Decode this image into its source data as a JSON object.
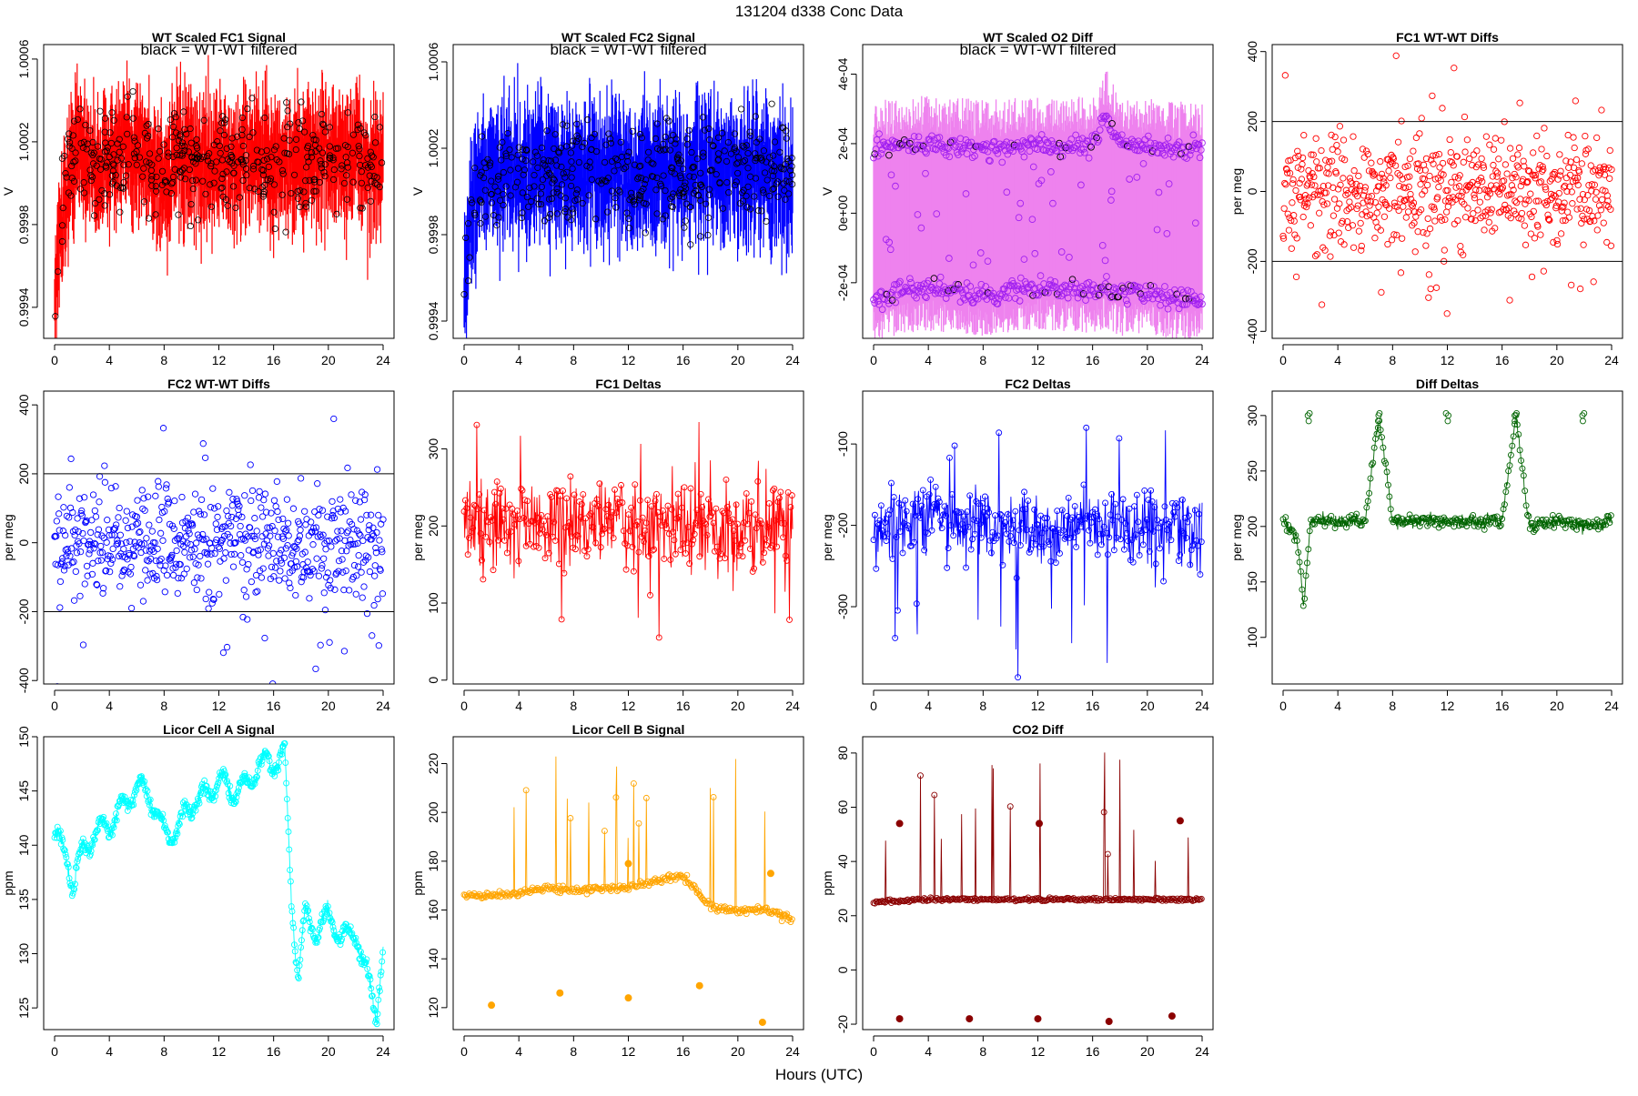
{
  "header": {
    "main_title": "131204   d338   Conc Data",
    "x_axis_label": "Hours (UTC)"
  },
  "x_ticks": [
    "0",
    "4",
    "8",
    "12",
    "16",
    "20",
    "24"
  ],
  "chart_data": [
    {
      "id": "fc1_signal",
      "type": "line",
      "title": "WT Scaled FC1 Signal",
      "annotation": "black = WT-WT filtered",
      "ylabel": "V",
      "ylim": [
        0.99925,
        1.00067
      ],
      "yticks": [
        0.9994,
        0.9998,
        1.0002,
        1.0006
      ],
      "ytick_labels": [
        "0.9994",
        "0.9998",
        "1.0002",
        "1.0006"
      ],
      "color": "#ff0000",
      "spread": 0.00028,
      "markers": "black-circles",
      "series": [
        {
          "name": "FC1 signal",
          "x": [
            0,
            0.5,
            1,
            1.5,
            2,
            3,
            4,
            5,
            6,
            7,
            8,
            9,
            10,
            11,
            12,
            13,
            14,
            15,
            16,
            17,
            18,
            19,
            20,
            21,
            22,
            23,
            24
          ],
          "values": [
            0.99945,
            0.99985,
            1.0,
            1.00015,
            1.00018,
            1.00005,
            1.00015,
            1.00012,
            1.00018,
            1.0001,
            1.0,
            1.00012,
            1.00008,
            1.0001,
            1.00012,
            1.00005,
            1.00015,
            1.0001,
            1.00008,
            1.0001,
            1.00012,
            1.00012,
            1.00015,
            1.0001,
            1.00015,
            1.00005,
            1.00008
          ]
        }
      ]
    },
    {
      "id": "fc2_signal",
      "type": "line",
      "title": "WT Scaled FC2 Signal",
      "annotation": "black = WT-WT filtered",
      "ylabel": "V",
      "ylim": [
        0.99932,
        1.00068
      ],
      "yticks": [
        0.9994,
        0.9998,
        1.0002,
        1.0006
      ],
      "ytick_labels": [
        "0.9994",
        "0.9998",
        "1.0002",
        "1.0006"
      ],
      "color": "#0000ff",
      "spread": 0.00028,
      "markers": "black-circles",
      "series": [
        {
          "name": "FC2 signal",
          "x": [
            0,
            0.5,
            1,
            1.5,
            2,
            3,
            4,
            5,
            6,
            7,
            8,
            9,
            10,
            11,
            12,
            13,
            14,
            15,
            16,
            17,
            18,
            19,
            20,
            21,
            22,
            23,
            24
          ],
          "values": [
            0.99955,
            0.9999,
            1.00005,
            1.00008,
            1.0001,
            1.00008,
            1.0001,
            1.0001,
            1.00012,
            1.0001,
            1.00005,
            1.0001,
            1.00008,
            1.0001,
            1.0001,
            1.00005,
            1.0001,
            1.0001,
            1.00005,
            1.0001,
            1.0001,
            1.00008,
            1.0001,
            1.0001,
            1.00012,
            1.00005,
            1.00008
          ]
        }
      ]
    },
    {
      "id": "o2_diff",
      "type": "line",
      "title": "WT Scaled O2 Diff",
      "annotation": "black = WT-WT filtered",
      "ylabel": "V",
      "ylim": [
        -0.00036,
        0.000485
      ],
      "yticks": [
        -0.0002,
        0,
        0.0002,
        0.0004
      ],
      "ytick_labels": [
        "-2e-04",
        "0e+00",
        "2e-04",
        "4e-04"
      ],
      "color": "#ee82ee",
      "marker_color": "#a020f0",
      "spread": 0,
      "markers": "purple-bands",
      "series": [
        {
          "name": "upper band",
          "x": [
            0,
            2,
            4,
            6,
            8,
            10,
            12,
            14,
            16,
            17,
            18,
            20,
            22,
            24
          ],
          "values": [
            0.000185,
            0.00019,
            0.0002,
            0.000195,
            0.000185,
            0.00019,
            0.0002,
            0.00019,
            0.0002,
            0.00028,
            0.0002,
            0.00019,
            0.00018,
            0.00019
          ]
        },
        {
          "name": "lower band",
          "x": [
            0,
            2,
            4,
            6,
            8,
            10,
            12,
            14,
            16,
            17,
            18,
            20,
            22,
            24
          ],
          "values": [
            -0.000245,
            -0.00023,
            -0.00022,
            -0.000225,
            -0.00024,
            -0.000225,
            -0.000215,
            -0.00022,
            -0.000225,
            -0.00021,
            -0.000235,
            -0.000225,
            -0.000245,
            -0.00025
          ]
        }
      ]
    },
    {
      "id": "fc1_wtwt",
      "type": "scatter",
      "title": "FC1 WT-WT Diffs",
      "ylabel": "per meg",
      "ylim": [
        -420,
        420
      ],
      "yticks": [
        -400,
        -200,
        0,
        200,
        400
      ],
      "ytick_labels": [
        "-400",
        "-200",
        "0",
        "200",
        "400"
      ],
      "color": "#ff0000",
      "hlines": [
        200,
        -200
      ],
      "spread": 75
    },
    {
      "id": "fc2_wtwt",
      "type": "scatter",
      "title": "FC2 WT-WT Diffs",
      "ylabel": "per meg",
      "ylim": [
        -410,
        440
      ],
      "yticks": [
        -400,
        -200,
        0,
        200,
        400
      ],
      "ytick_labels": [
        "-400",
        "-200",
        "0",
        "200",
        "400"
      ],
      "color": "#0000ff",
      "hlines": [
        200,
        -200
      ],
      "spread": 80
    },
    {
      "id": "fc1_deltas",
      "type": "line",
      "title": "FC1 Deltas",
      "ylabel": "per meg",
      "ylim": [
        -5,
        375
      ],
      "yticks": [
        0,
        100,
        200,
        300
      ],
      "ytick_labels": [
        "0",
        "100",
        "200",
        "300"
      ],
      "color": "#ff0000",
      "spread": 55,
      "series": [
        {
          "name": "FC1 delta",
          "x": [
            0,
            4,
            8,
            12,
            16,
            20,
            24
          ],
          "values": [
            200,
            205,
            200,
            205,
            200,
            200,
            205
          ]
        }
      ]
    },
    {
      "id": "fc2_deltas",
      "type": "line",
      "title": "FC2 Deltas",
      "ylabel": "per meg",
      "ylim": [
        -395,
        -35
      ],
      "yticks": [
        -300,
        -200,
        -100
      ],
      "ytick_labels": [
        "-300",
        "-200",
        "-100"
      ],
      "color": "#0000ff",
      "spread": 45,
      "series": [
        {
          "name": "FC2 delta",
          "x": [
            0,
            4,
            8,
            12,
            16,
            20,
            24
          ],
          "values": [
            -205,
            -195,
            -200,
            -205,
            -200,
            -200,
            -205
          ]
        }
      ]
    },
    {
      "id": "diff_deltas",
      "type": "line",
      "title": "Diff Deltas",
      "ylabel": "per meg",
      "ylim": [
        58,
        322
      ],
      "yticks": [
        100,
        150,
        200,
        250,
        300
      ],
      "ytick_labels": [
        "100",
        "150",
        "200",
        "250",
        "300"
      ],
      "color": "#006400",
      "spread": 6,
      "series": [
        {
          "name": "Diff delta",
          "x": [
            0,
            1,
            1.5,
            2,
            4,
            6,
            7,
            8,
            10,
            12,
            14,
            16,
            17,
            18,
            20,
            22,
            24
          ],
          "values": [
            205,
            190,
            130,
            205,
            205,
            205,
            300,
            205,
            205,
            205,
            205,
            205,
            300,
            200,
            205,
            200,
            205
          ]
        }
      ]
    },
    {
      "id": "licor_a",
      "type": "line",
      "title": "Licor Cell A Signal",
      "ylabel": "ppm",
      "ylim": [
        123,
        150
      ],
      "yticks": [
        125,
        130,
        135,
        140,
        145,
        150
      ],
      "ytick_labels": [
        "125",
        "130",
        "135",
        "140",
        "145",
        "150"
      ],
      "color": "#00ffff",
      "spread": 0.6,
      "series": [
        {
          "name": "Cell A",
          "x": [
            0,
            0.2,
            1,
            1.3,
            2,
            3,
            4,
            5,
            6,
            7,
            8,
            9,
            10,
            11,
            12,
            13,
            14,
            15,
            16,
            16.8,
            17.3,
            17.8,
            18.3,
            19,
            20,
            21,
            22,
            23,
            23.5,
            24
          ],
          "values": [
            141,
            140.8,
            138.5,
            136,
            139.5,
            141,
            142,
            143.5,
            145.5,
            144.5,
            141,
            141.5,
            144,
            144.5,
            146,
            145,
            145.5,
            147.5,
            147.5,
            148.5,
            135,
            128,
            133.5,
            132,
            133.5,
            131.5,
            132,
            127,
            124.5,
            130.5
          ]
        }
      ]
    },
    {
      "id": "licor_b",
      "type": "line",
      "title": "Licor Cell B Signal",
      "ylabel": "ppm",
      "ylim": [
        111,
        231
      ],
      "yticks": [
        120,
        140,
        160,
        180,
        200,
        220
      ],
      "ytick_labels": [
        "120",
        "140",
        "160",
        "180",
        "200",
        "220"
      ],
      "color": "#ffa500",
      "spread": 1.5,
      "series": [
        {
          "name": "Cell B",
          "x": [
            0,
            2,
            4,
            6,
            8,
            10,
            12,
            14,
            16,
            17,
            18,
            20,
            22,
            24
          ],
          "values": [
            166,
            166,
            167,
            169,
            168,
            169,
            169,
            172,
            174,
            168,
            161,
            160,
            160,
            156
          ]
        }
      ]
    },
    {
      "id": "co2_diff",
      "type": "line",
      "title": "CO2 Diff",
      "ylabel": "ppm",
      "ylim": [
        -22,
        86
      ],
      "yticks": [
        -20,
        0,
        20,
        40,
        60,
        80
      ],
      "ytick_labels": [
        "-20",
        "0",
        "20",
        "40",
        "60",
        "80"
      ],
      "color": "#8b0000",
      "spread": 0.6,
      "series": [
        {
          "name": "CO2 diff",
          "x": [
            0,
            4,
            8,
            12,
            16,
            20,
            24
          ],
          "values": [
            25,
            26,
            26,
            26,
            26,
            26,
            26
          ]
        }
      ]
    }
  ]
}
